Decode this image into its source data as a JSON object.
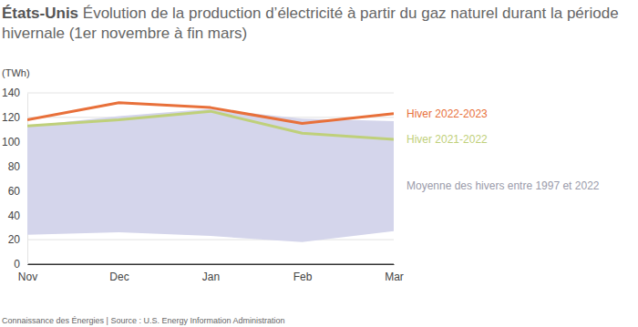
{
  "chart_data": {
    "type": "line",
    "title": "États-Unis",
    "subtitle": "Évolution de la production d’électricité à partir du gaz naturel durant la période hivernale (1er novembre à fin mars)",
    "y_label": "(TWh)",
    "source": "Connaissance des Énergies | Source : U.S. Energy Information Administration",
    "categories": [
      "Nov",
      "Dec",
      "Jan",
      "Feb",
      "Mar"
    ],
    "series": [
      {
        "name": "Moyenne des hivers entre 1997 et 2022",
        "type": "range",
        "color": "#d4d5eb",
        "low": [
          24,
          26,
          23,
          18,
          27
        ],
        "values": [
          113,
          121,
          127,
          119,
          117
        ]
      },
      {
        "name": "Hiver 2021-2022",
        "color": "#bfd07a",
        "values": [
          113,
          118,
          125,
          107,
          102
        ]
      },
      {
        "name": "Hiver 2022-2023",
        "color": "#e8703a",
        "values": [
          118,
          132,
          128,
          115,
          123
        ]
      }
    ],
    "ylim": [
      0,
      140
    ],
    "yticks": [
      0,
      20,
      40,
      60,
      80,
      100,
      120,
      140
    ],
    "grid": true,
    "legend": "right"
  }
}
